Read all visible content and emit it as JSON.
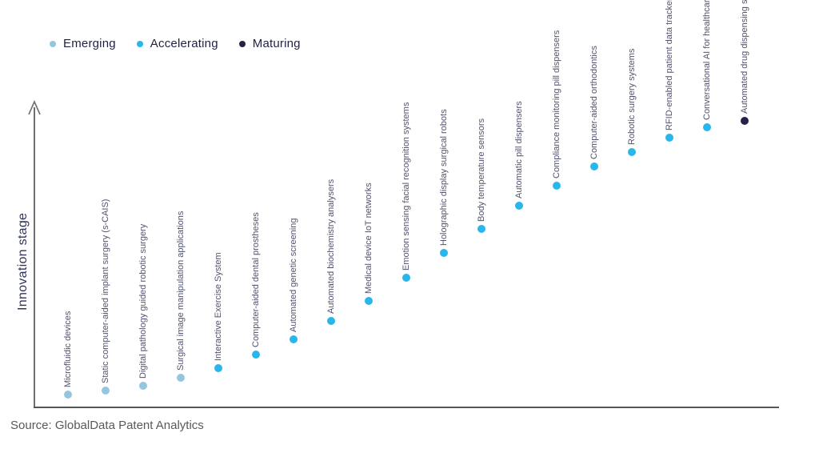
{
  "chart_data": {
    "type": "scatter",
    "title": "",
    "xlabel": "",
    "ylabel": "Innovation stage",
    "ylim": [
      0,
      100
    ],
    "grid": false,
    "axis_ticks": "none",
    "legend_position": "top-left",
    "legend": [
      {
        "label": "Emerging",
        "color": "#96c5e0"
      },
      {
        "label": "Accelerating",
        "color": "#29b6ea"
      },
      {
        "label": "Maturing",
        "color": "#262148"
      }
    ],
    "points": [
      {
        "label": "Microfluidic devices",
        "stage": "Emerging",
        "value": 4.5
      },
      {
        "label": "Static computer-aided implant surgery (s-CAIS)",
        "stage": "Emerging",
        "value": 5.9
      },
      {
        "label": "Digital pathology guided robotic surgery",
        "stage": "Emerging",
        "value": 7.5
      },
      {
        "label": "Surgical image manipulation applications",
        "stage": "Emerging",
        "value": 10.1
      },
      {
        "label": "Interactive Exercise System",
        "stage": "Accelerating",
        "value": 13.3
      },
      {
        "label": "Computer-aided dental prostheses",
        "stage": "Accelerating",
        "value": 17.9
      },
      {
        "label": "Automated genetic screening",
        "stage": "Accelerating",
        "value": 22.9
      },
      {
        "label": "Automated biochemistry analysers",
        "stage": "Accelerating",
        "value": 29.1
      },
      {
        "label": "Medical device IoT networks",
        "stage": "Accelerating",
        "value": 35.7
      },
      {
        "label": "Emotion sensing facial recognition systems",
        "stage": "Accelerating",
        "value": 43.5
      },
      {
        "label": "Holographic display surgical robots",
        "stage": "Accelerating",
        "value": 51.7
      },
      {
        "label": "Body temperature sensors",
        "stage": "Accelerating",
        "value": 59.7
      },
      {
        "label": "Automatic pill dispensers",
        "stage": "Accelerating",
        "value": 67.5
      },
      {
        "label": "Compliance monitoring pill dispensers",
        "stage": "Accelerating",
        "value": 74.1
      },
      {
        "label": "Computer-aided orthodontics",
        "stage": "Accelerating",
        "value": 80.5
      },
      {
        "label": "Robotic surgery systems",
        "stage": "Accelerating",
        "value": 85.3
      },
      {
        "label": "RFID-enabled patient data tracker",
        "stage": "Accelerating",
        "value": 90.1
      },
      {
        "label": "Conversational AI for healthcare",
        "stage": "Accelerating",
        "value": 93.6
      },
      {
        "label": "Automated drug dispensing systems",
        "stage": "Maturing",
        "value": 95.7
      }
    ],
    "source": "Source: GlobalData Patent Analytics"
  }
}
